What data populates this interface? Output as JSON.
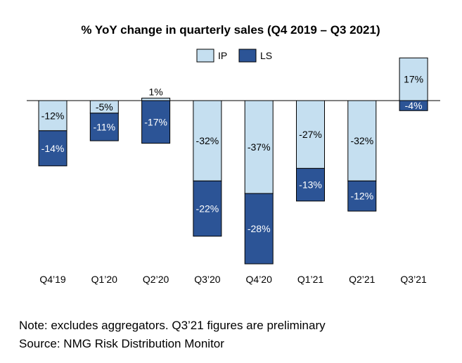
{
  "chart_data": {
    "type": "bar",
    "stacked": true,
    "title": "% YoY change in quarterly sales (Q4 2019 – Q3 2021)",
    "categories": [
      "Q4’19",
      "Q1’20",
      "Q2’20",
      "Q3’20",
      "Q4’20",
      "Q1’21",
      "Q2’21",
      "Q3’21"
    ],
    "series": [
      {
        "name": "IP",
        "color": "#c5dff0",
        "values": [
          -12,
          -5,
          1,
          -32,
          -37,
          -27,
          -32,
          17
        ],
        "labels": [
          "-12%",
          "-5%",
          "1%",
          "-32%",
          "-37%",
          "-27%",
          "-32%",
          "17%"
        ]
      },
      {
        "name": "LS",
        "color": "#2c5496",
        "values": [
          -14,
          -11,
          -17,
          -22,
          -28,
          -13,
          -12,
          -4
        ],
        "labels": [
          "-14%",
          "-11%",
          "-17%",
          "-22%",
          "-28%",
          "-13%",
          "-12%",
          "-4%"
        ]
      }
    ],
    "legend_position": "top-center",
    "grid": false
  },
  "footnote": {
    "note": "Note: excludes aggregators. Q3’21 figures are preliminary",
    "source": "Source: NMG Risk Distribution Monitor"
  }
}
